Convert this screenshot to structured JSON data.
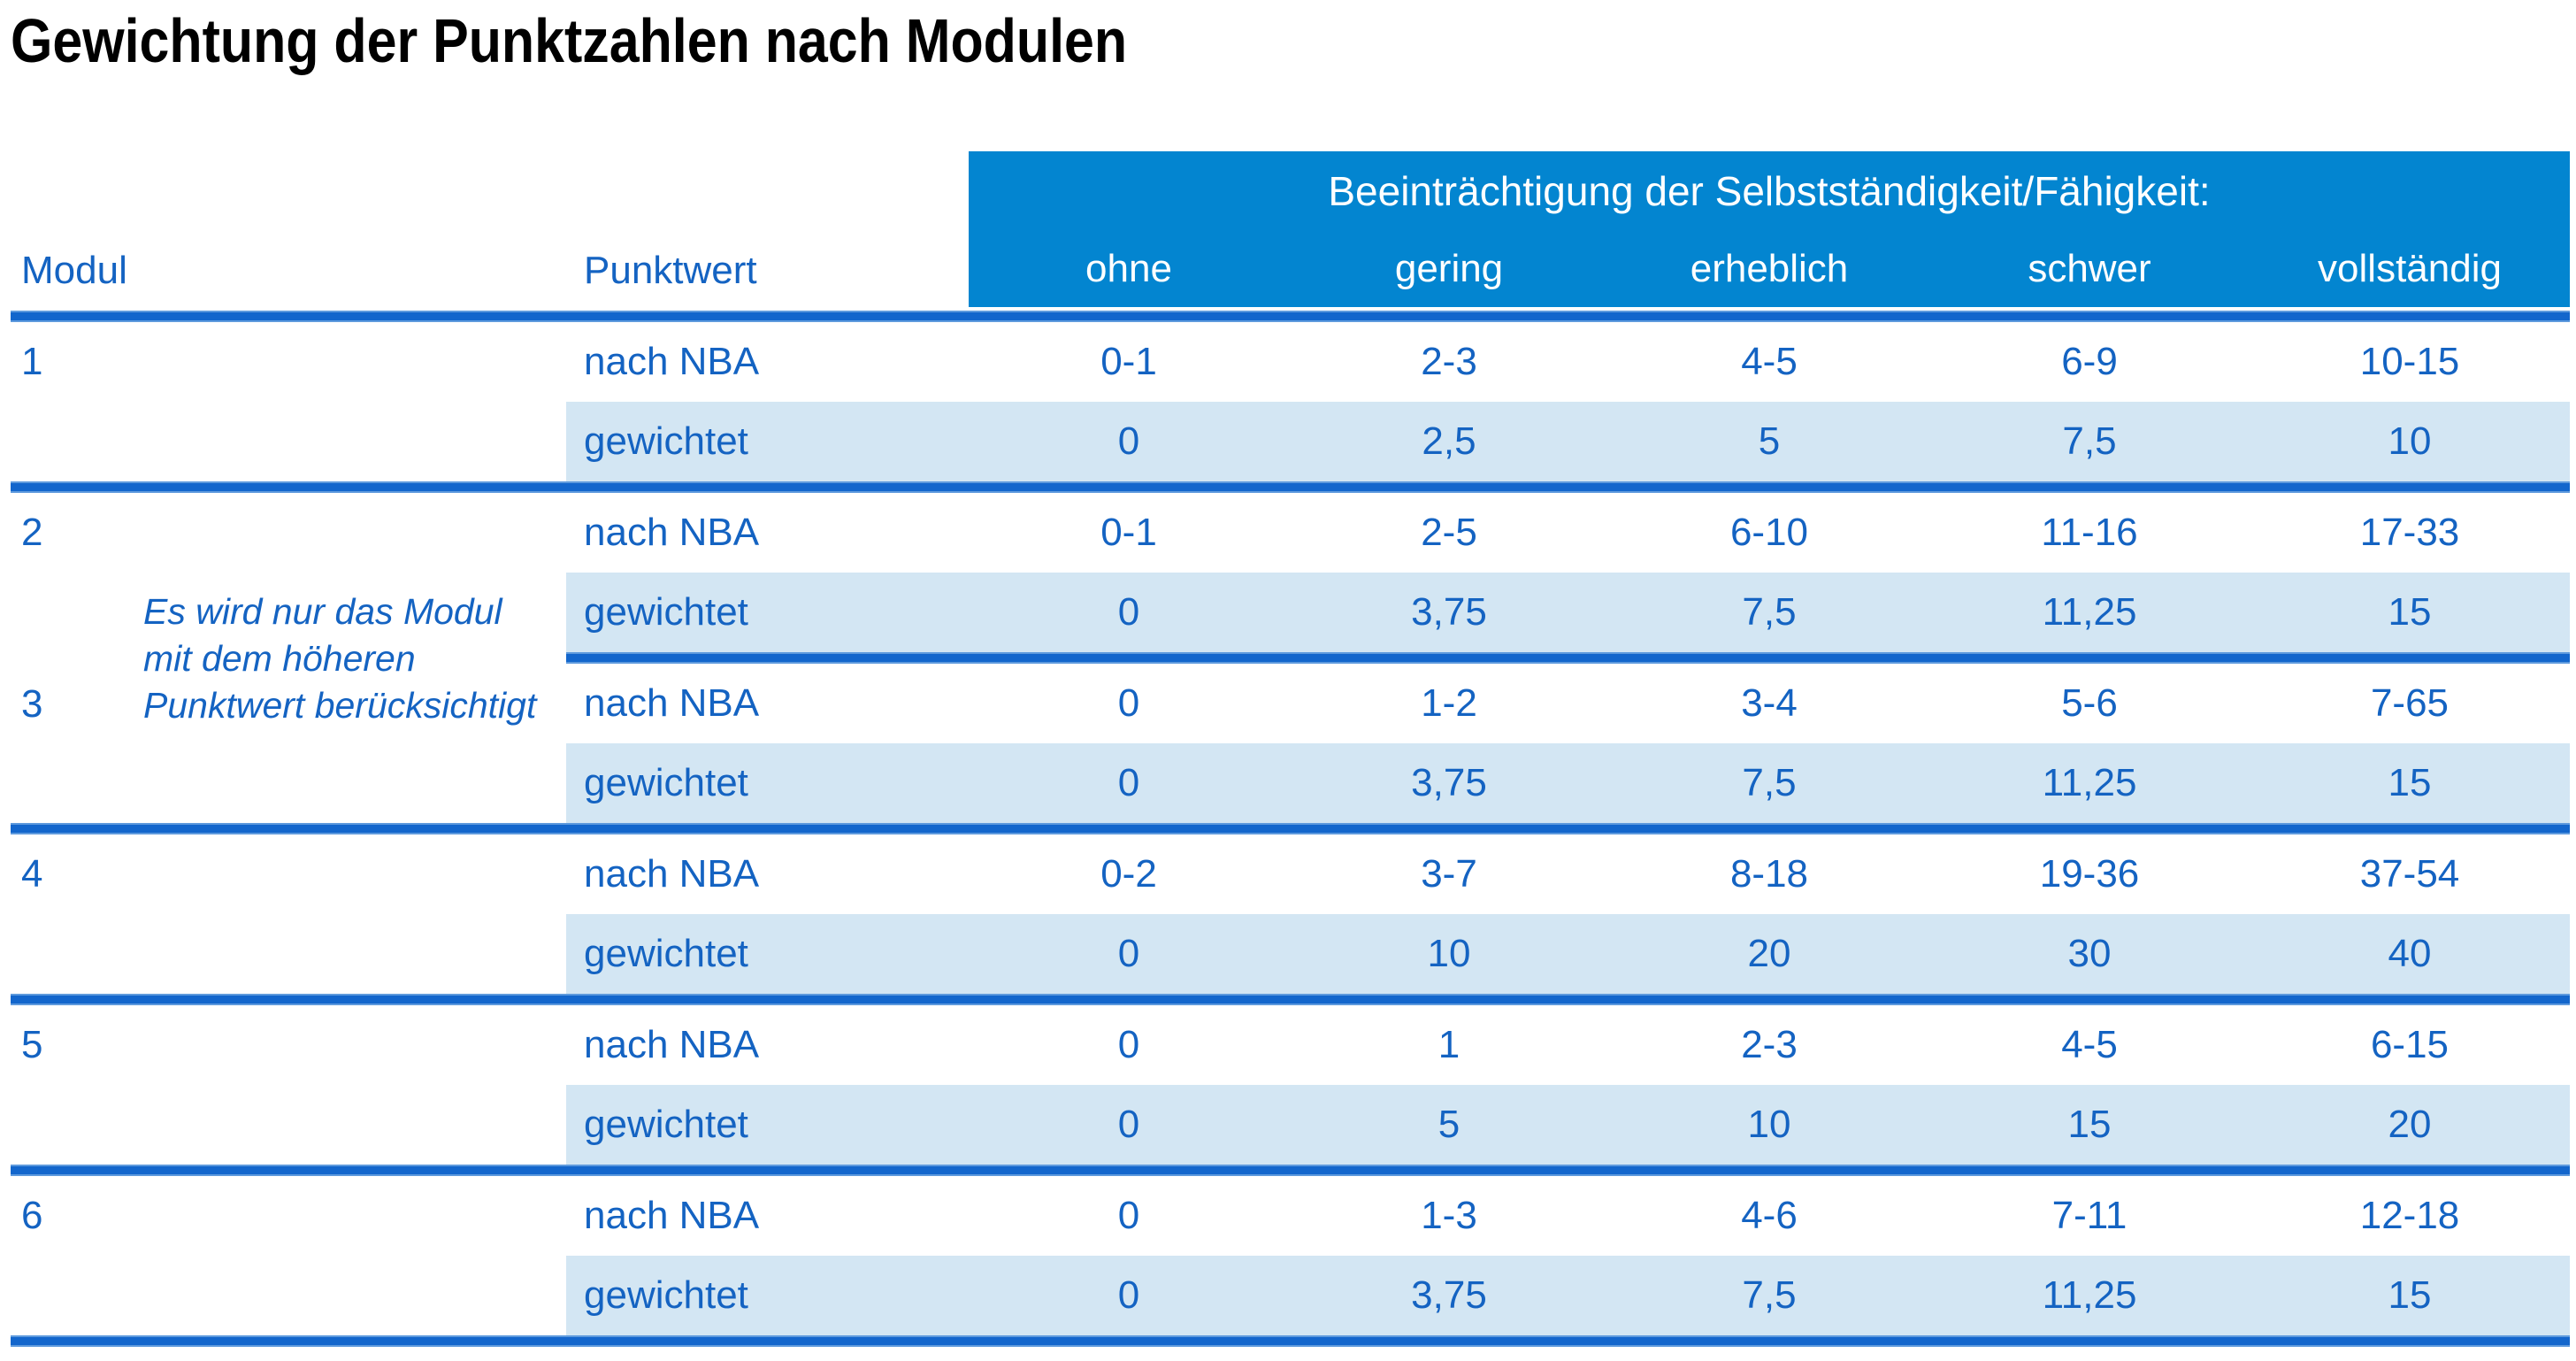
{
  "title": "Gewichtung der Punktzahlen nach Modulen",
  "table": {
    "col_headers": {
      "modul": "Modul",
      "punktwert": "Punktwert"
    },
    "impairment_header": "Beeinträchtigung der Selbstständigkeit/Fähigkeit:",
    "severity_levels": [
      "ohne",
      "gering",
      "erheblich",
      "schwer",
      "vollständig"
    ],
    "row_labels": {
      "nba": "nach NBA",
      "weighted": "gewichtet"
    },
    "note": {
      "line1": "Es wird nur das Modul",
      "line2": "mit dem höheren",
      "line3": "Punktwert berücksichtigt"
    },
    "modules": [
      {
        "number": "1",
        "nba": [
          "0-1",
          "2-3",
          "4-5",
          "6-9",
          "10-15"
        ],
        "weighted": [
          "0",
          "2,5",
          "5",
          "7,5",
          "10"
        ]
      },
      {
        "number": "2",
        "nba": [
          "0-1",
          "2-5",
          "6-10",
          "11-16",
          "17-33"
        ],
        "weighted": [
          "0",
          "3,75",
          "7,5",
          "11,25",
          "15"
        ]
      },
      {
        "number": "3",
        "nba": [
          "0",
          "1-2",
          "3-4",
          "5-6",
          "7-65"
        ],
        "weighted": [
          "0",
          "3,75",
          "7,5",
          "11,25",
          "15"
        ]
      },
      {
        "number": "4",
        "nba": [
          "0-2",
          "3-7",
          "8-18",
          "19-36",
          "37-54"
        ],
        "weighted": [
          "0",
          "10",
          "20",
          "30",
          "40"
        ]
      },
      {
        "number": "5",
        "nba": [
          "0",
          "1",
          "2-3",
          "4-5",
          "6-15"
        ],
        "weighted": [
          "0",
          "5",
          "10",
          "15",
          "20"
        ]
      },
      {
        "number": "6",
        "nba": [
          "0",
          "1-3",
          "4-6",
          "7-11",
          "12-18"
        ],
        "weighted": [
          "0",
          "3,75",
          "7,5",
          "11,25",
          "15"
        ]
      }
    ]
  },
  "colors": {
    "header_blue": "#0385D0",
    "separator_blue": "#1366CC",
    "row_light_blue": "#D3E6F3",
    "text_blue": "#1463C2"
  }
}
